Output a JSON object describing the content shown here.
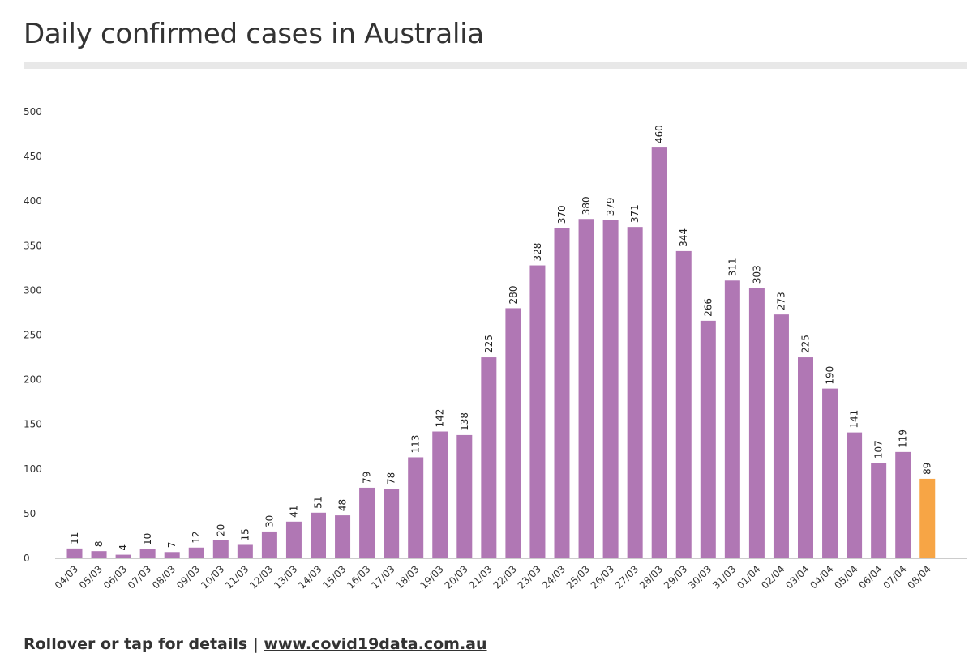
{
  "title": "Daily confirmed cases in Australia",
  "footer": {
    "text": "Rollover or tap for details |",
    "link_text": "www.covid19data.com.au"
  },
  "colors": {
    "bar": "#b077b4",
    "highlight": "#f7a545",
    "axis": "#cccccc"
  },
  "chart_data": {
    "type": "bar",
    "title": "Daily confirmed cases in Australia",
    "xlabel": "",
    "ylabel": "",
    "ylim": [
      0,
      500
    ],
    "yticks": [
      0,
      50,
      100,
      150,
      200,
      250,
      300,
      350,
      400,
      450,
      500
    ],
    "grid": false,
    "legend": "none",
    "categories": [
      "04/03",
      "05/03",
      "06/03",
      "07/03",
      "08/03",
      "09/03",
      "10/03",
      "11/03",
      "12/03",
      "13/03",
      "14/03",
      "15/03",
      "16/03",
      "17/03",
      "18/03",
      "19/03",
      "20/03",
      "21/03",
      "22/03",
      "23/03",
      "24/03",
      "25/03",
      "26/03",
      "27/03",
      "28/03",
      "29/03",
      "30/03",
      "31/03",
      "01/04",
      "02/04",
      "03/04",
      "04/04",
      "05/04",
      "06/04",
      "07/04",
      "08/04"
    ],
    "values": [
      11,
      8,
      4,
      10,
      7,
      12,
      20,
      15,
      30,
      41,
      51,
      48,
      79,
      78,
      113,
      142,
      138,
      225,
      280,
      328,
      370,
      380,
      379,
      371,
      460,
      344,
      266,
      311,
      303,
      273,
      225,
      190,
      141,
      107,
      119,
      89
    ],
    "highlight_category": "08/04"
  }
}
